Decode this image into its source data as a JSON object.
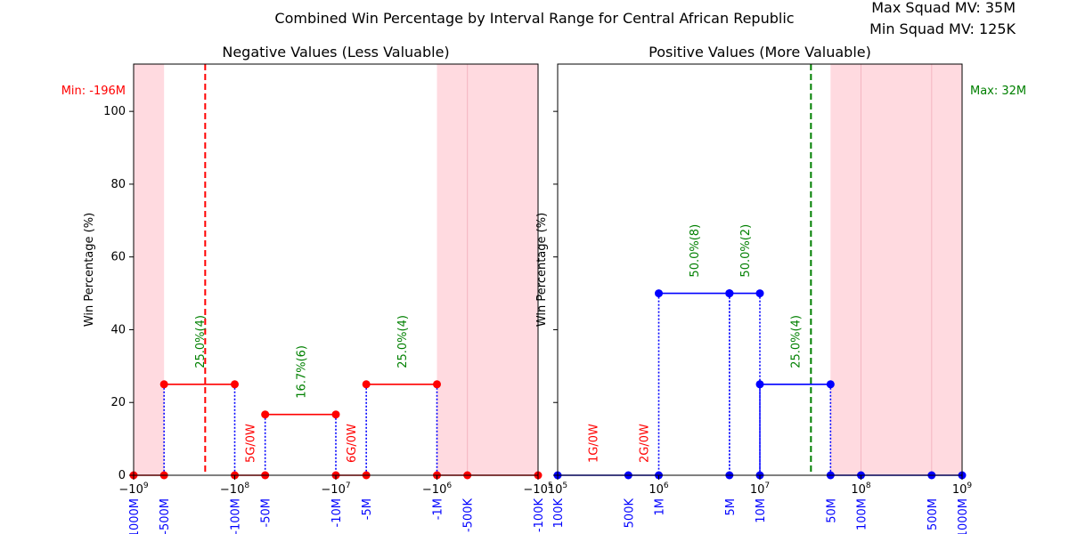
{
  "figure": {
    "title": "Combined Win Percentage by Interval Range for Central African Republic",
    "max_squad_mv": "Max Squad MV: 35M",
    "min_squad_mv": "Min Squad MV: 125K"
  },
  "chart_data": [
    {
      "type": "line",
      "title": "Negative Values (Less Valuable)",
      "ylabel": "Win Percentage (%)",
      "xscale": "symlog (negative, log magnitude)",
      "xlim": [
        -1000000000,
        -100000
      ],
      "ylim": [
        0,
        113
      ],
      "yticks": [
        0,
        20,
        40,
        60,
        80,
        100
      ],
      "xtick_labels": [
        "−10^9",
        "−10^8",
        "−10^7",
        "−10^6",
        "−10^5"
      ],
      "color": "#ff0000",
      "marker_labels": [
        {
          "x": -1000000000,
          "text": "-1000M"
        },
        {
          "x": -500000000,
          "text": "-500M"
        },
        {
          "x": -100000000,
          "text": "-100M"
        },
        {
          "x": -50000000,
          "text": "-50M"
        },
        {
          "x": -10000000,
          "text": "-10M"
        },
        {
          "x": -5000000,
          "text": "-5M"
        },
        {
          "x": -1000000,
          "text": "-1M"
        },
        {
          "x": -500000,
          "text": "-500K"
        },
        {
          "x": -100000,
          "text": "-100K"
        }
      ],
      "segments": [
        {
          "x0": -1000000000,
          "x1": -500000000,
          "win_pct": 0,
          "label": "",
          "label_color": ""
        },
        {
          "x0": -500000000,
          "x1": -100000000,
          "win_pct": 25.0,
          "label": "25.0%(4)",
          "label_color": "#008000"
        },
        {
          "x0": -100000000,
          "x1": -50000000,
          "win_pct": 0,
          "label": "5G/0W",
          "label_color": "#ff0000"
        },
        {
          "x0": -50000000,
          "x1": -10000000,
          "win_pct": 16.7,
          "label": "16.7%(6)",
          "label_color": "#008000"
        },
        {
          "x0": -10000000,
          "x1": -5000000,
          "win_pct": 0,
          "label": "6G/0W",
          "label_color": "#ff0000"
        },
        {
          "x0": -5000000,
          "x1": -1000000,
          "win_pct": 25.0,
          "label": "25.0%(4)",
          "label_color": "#008000"
        },
        {
          "x0": -1000000,
          "x1": -500000,
          "win_pct": 0,
          "label": "",
          "label_color": ""
        },
        {
          "x0": -500000,
          "x1": -100000,
          "win_pct": 0,
          "label": "",
          "label_color": ""
        }
      ],
      "shaded_ranges": [
        [
          -1000000000,
          -500000000
        ],
        [
          -1000000,
          -100000
        ]
      ],
      "vline": {
        "x": -196000000,
        "color": "#ff0000",
        "label": "Min: -196M"
      }
    },
    {
      "type": "line",
      "title": "Positive Values (More Valuable)",
      "ylabel": "Win Percentage (%)",
      "xscale": "log",
      "xlim": [
        100000,
        1000000000
      ],
      "ylim": [
        0,
        113
      ],
      "yticks": [
        0,
        20,
        40,
        60,
        80,
        100
      ],
      "xtick_labels": [
        "10^5",
        "10^6",
        "10^7",
        "10^8",
        "10^9"
      ],
      "color": "#0000ff",
      "marker_labels": [
        {
          "x": 100000,
          "text": "100K"
        },
        {
          "x": 500000,
          "text": "500K"
        },
        {
          "x": 1000000,
          "text": "1M"
        },
        {
          "x": 5000000,
          "text": "5M"
        },
        {
          "x": 10000000,
          "text": "10M"
        },
        {
          "x": 50000000,
          "text": "50M"
        },
        {
          "x": 100000000,
          "text": "100M"
        },
        {
          "x": 500000000,
          "text": "500M"
        },
        {
          "x": 1000000000,
          "text": "1000M"
        }
      ],
      "segments": [
        {
          "x0": 100000,
          "x1": 500000,
          "win_pct": 0,
          "label": "1G/0W",
          "label_color": "#ff0000"
        },
        {
          "x0": 500000,
          "x1": 1000000,
          "win_pct": 0,
          "label": "2G/0W",
          "label_color": "#ff0000"
        },
        {
          "x0": 1000000,
          "x1": 5000000,
          "win_pct": 50.0,
          "label": "50.0%(8)",
          "label_color": "#008000"
        },
        {
          "x0": 5000000,
          "x1": 10000000,
          "win_pct": 50.0,
          "label": "50.0%(2)",
          "label_color": "#008000"
        },
        {
          "x0": 10000000,
          "x1": 50000000,
          "win_pct": 25.0,
          "label": "25.0%(4)",
          "label_color": "#008000"
        },
        {
          "x0": 50000000,
          "x1": 100000000,
          "win_pct": 0,
          "label": "",
          "label_color": ""
        },
        {
          "x0": 100000000,
          "x1": 500000000,
          "win_pct": 0,
          "label": "",
          "label_color": ""
        },
        {
          "x0": 500000000,
          "x1": 1000000000,
          "win_pct": 0,
          "label": "",
          "label_color": ""
        }
      ],
      "shaded_ranges": [
        [
          50000000,
          1000000000
        ]
      ],
      "vline": {
        "x": 32000000,
        "color": "#008000",
        "label": "Max: 32M"
      }
    }
  ]
}
